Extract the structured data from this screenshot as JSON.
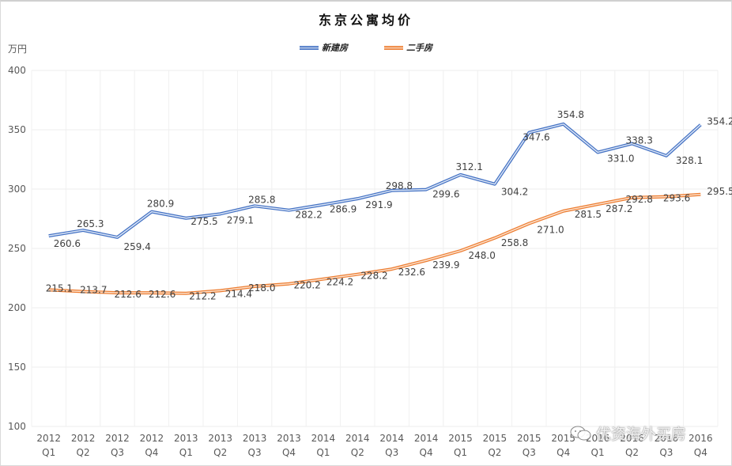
{
  "chart_data": {
    "type": "line",
    "title": "东京公寓均价",
    "xlabel": "",
    "ylabel": "万円",
    "ylim": [
      100,
      400
    ],
    "yticks": [
      100,
      150,
      200,
      250,
      300,
      350,
      400
    ],
    "grid": true,
    "legend_position": "top",
    "categories": [
      "2012 Q1",
      "2012 Q2",
      "2012 Q3",
      "2012 Q4",
      "2013 Q1",
      "2013 Q2",
      "2013 Q3",
      "2013 Q4",
      "2014 Q1",
      "2014 Q2",
      "2014 Q3",
      "2014 Q4",
      "2015 Q1",
      "2015 Q2",
      "2015 Q3",
      "2015 Q4",
      "2016 Q1",
      "2016 Q2",
      "2016 Q3",
      "2016 Q4"
    ],
    "category_lines": [
      [
        "2012",
        "Q1"
      ],
      [
        "2012",
        "Q2"
      ],
      [
        "2012",
        "Q3"
      ],
      [
        "2012",
        "Q4"
      ],
      [
        "2013",
        "Q1"
      ],
      [
        "2013",
        "Q2"
      ],
      [
        "2013",
        "Q3"
      ],
      [
        "2013",
        "Q4"
      ],
      [
        "2014",
        "Q1"
      ],
      [
        "2014",
        "Q2"
      ],
      [
        "2014",
        "Q3"
      ],
      [
        "2014",
        "Q4"
      ],
      [
        "2015",
        "Q1"
      ],
      [
        "2015",
        "Q2"
      ],
      [
        "2015",
        "Q3"
      ],
      [
        "2015",
        "Q4"
      ],
      [
        "2016",
        "Q1"
      ],
      [
        "2016",
        "Q2"
      ],
      [
        "2016",
        "Q3"
      ],
      [
        "2016",
        "Q4"
      ]
    ],
    "series": [
      {
        "name": "新建房",
        "color": "#4472c4",
        "values": [
          260.6,
          265.3,
          259.4,
          280.9,
          275.5,
          279.1,
          285.8,
          282.2,
          286.9,
          291.9,
          298.8,
          299.6,
          312.1,
          304.2,
          347.6,
          354.8,
          331.0,
          338.3,
          328.1,
          354.2
        ],
        "labels": [
          "260.6",
          "265.3",
          "259.4",
          "280.9",
          "275.5",
          "279.1",
          "285.8",
          "282.2",
          "286.9",
          "291.9",
          "298.8",
          "299.6",
          "312.1",
          "304.2",
          "347.6",
          "354.8",
          "331.0",
          "338.3",
          "328.1",
          "354.2"
        ]
      },
      {
        "name": "二手房",
        "color": "#ed7d31",
        "values": [
          215.1,
          213.7,
          212.6,
          212.6,
          212.2,
          214.4,
          218.0,
          220.2,
          224.2,
          228.2,
          232.6,
          239.9,
          248.0,
          258.8,
          271.0,
          281.5,
          287.2,
          292.8,
          293.6,
          295.5
        ],
        "labels": [
          "215.1",
          "213.7",
          "212.6",
          "212.6",
          "212.2",
          "214.4",
          "218.0",
          "220.2",
          "224.2",
          "228.2",
          "232.6",
          "239.9",
          "248.0",
          "258.8",
          "271.0",
          "281.5",
          "287.2",
          "292.8",
          "293.6",
          "295.5"
        ]
      }
    ]
  },
  "header": {
    "title": "东京公寓均价",
    "y_unit": "万円"
  },
  "legend": {
    "items": [
      {
        "label": "新建房",
        "color": "#8eaadb"
      },
      {
        "label": "二手房",
        "color": "#f4b183"
      }
    ]
  },
  "watermark": {
    "text": "优资海外买房",
    "icon": "wechat-icon"
  }
}
